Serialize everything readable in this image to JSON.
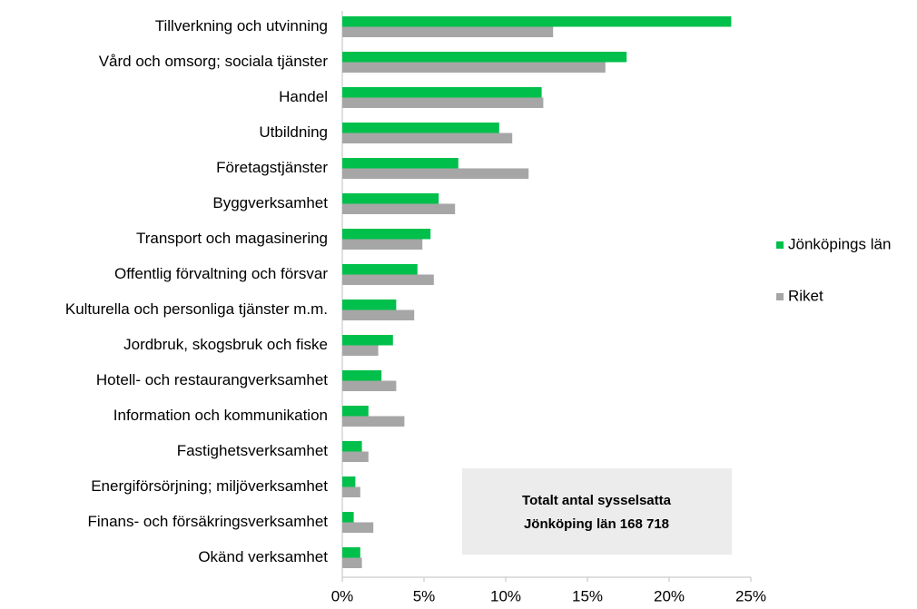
{
  "chart_data": {
    "type": "hbar",
    "categories": [
      "Tillverkning och utvinning",
      "Vård och omsorg; sociala tjänster",
      "Handel",
      "Utbildning",
      "Företagstjänster",
      "Byggverksamhet",
      "Transport och magasinering",
      "Offentlig förvaltning och försvar",
      "Kulturella och personliga tjänster m.m.",
      "Jordbruk, skogsbruk och fiske",
      "Hotell- och restaurangverksamhet",
      "Information och kommunikation",
      "Fastighetsverksamhet",
      "Energiförsörjning; miljöverksamhet",
      "Finans- och försäkringsverksamhet",
      "Okänd verksamhet"
    ],
    "series": [
      {
        "name": "Jönköpings län",
        "color": "#00c04b",
        "values": [
          23.8,
          17.4,
          12.2,
          9.6,
          7.1,
          5.9,
          5.4,
          4.6,
          3.3,
          3.1,
          2.4,
          1.6,
          1.2,
          0.8,
          0.7,
          1.1
        ]
      },
      {
        "name": "Riket",
        "color": "#a6a6a6",
        "values": [
          12.9,
          16.1,
          12.3,
          10.4,
          11.4,
          6.9,
          4.9,
          5.6,
          4.4,
          2.2,
          3.3,
          3.8,
          1.6,
          1.1,
          1.9,
          1.2
        ]
      }
    ],
    "xlim": [
      0,
      25
    ],
    "xticks": [
      {
        "value": 0,
        "label": "0%"
      },
      {
        "value": 5,
        "label": "5%"
      },
      {
        "value": 10,
        "label": "10%"
      },
      {
        "value": 15,
        "label": "15%"
      },
      {
        "value": 20,
        "label": "20%"
      },
      {
        "value": 25,
        "label": "25%"
      }
    ],
    "annotation": [
      "Totalt antal sysselsatta",
      "Jönköping län 168 718"
    ],
    "legend": "right"
  }
}
